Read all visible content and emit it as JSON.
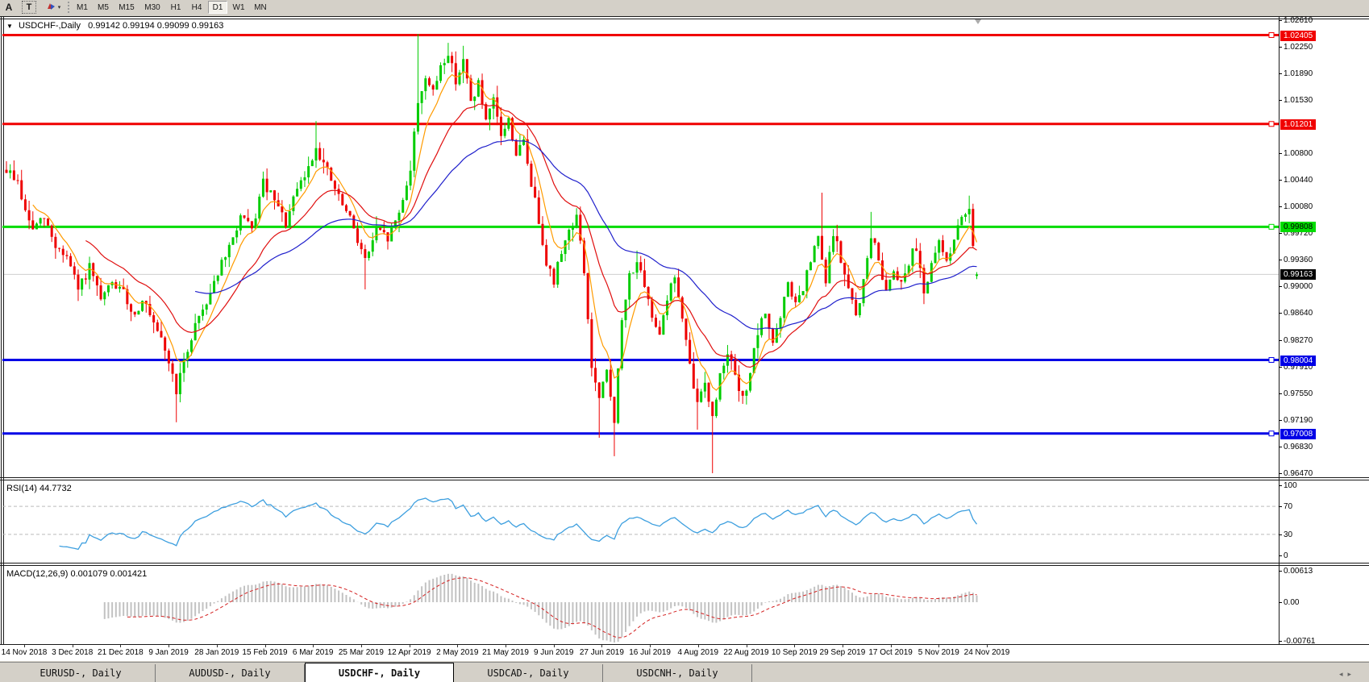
{
  "window": {
    "title_marker": "▼",
    "symbol_title": "USDCHF-,Daily",
    "ohlc_text": "0.99142 0.99194 0.99099 0.99163"
  },
  "toolbar": {
    "a_label": "A",
    "t_label": "T",
    "arrows_caret": "▾",
    "timeframes": [
      "M1",
      "M5",
      "M15",
      "M30",
      "H1",
      "H4",
      "D1",
      "W1",
      "MN"
    ],
    "active_timeframe": "D1"
  },
  "price_axis": {
    "ticks": [
      "1.02610",
      "1.02250",
      "1.01890",
      "1.01530",
      "1.00800",
      "1.00440",
      "1.00080",
      "0.99720",
      "0.99360",
      "0.99000",
      "0.98640",
      "0.98270",
      "0.97910",
      "0.97550",
      "0.97190",
      "0.96830",
      "0.96470"
    ],
    "current_price": {
      "label": "0.99163",
      "price": 0.99163,
      "bg": "#000000",
      "fg": "#ffffff"
    }
  },
  "levels": [
    {
      "label": "1.02405",
      "price": 1.02405,
      "color": "#f00000",
      "label_fg": "#ffffff",
      "width": 3
    },
    {
      "label": "1.01201",
      "price": 1.01201,
      "color": "#f00000",
      "label_fg": "#ffffff",
      "width": 3
    },
    {
      "label": "0.99808",
      "price": 0.99808,
      "color": "#00dc00",
      "label_fg": "#000000",
      "width": 3
    },
    {
      "label": "0.98004",
      "price": 0.98004,
      "color": "#0000e6",
      "label_fg": "#ffffff",
      "width": 3
    },
    {
      "label": "0.97008",
      "price": 0.97008,
      "color": "#0000e6",
      "label_fg": "#ffffff",
      "width": 3
    }
  ],
  "rsi_panel": {
    "label": "RSI(14) 44.7732",
    "ticks": [
      "100",
      "70",
      "30",
      "0"
    ],
    "tick_values": [
      100,
      70,
      30,
      0
    ],
    "dashed_levels": [
      70,
      30
    ],
    "line_color": "#3d9fdf"
  },
  "macd_panel": {
    "label": "MACD(12,26,9) 0.001079 0.001421",
    "ticks": [
      "0.00613",
      "0.00",
      "-0.00761"
    ],
    "tick_values": [
      0.00613,
      0,
      -0.00761
    ],
    "hist_color": "#c2c2c2",
    "signal_color": "#d42020"
  },
  "x_axis": {
    "dates": [
      "14 Nov 2018",
      "3 Dec 2018",
      "21 Dec 2018",
      "9 Jan 2019",
      "28 Jan 2019",
      "15 Feb 2019",
      "6 Mar 2019",
      "25 Mar 2019",
      "12 Apr 2019",
      "2 May 2019",
      "21 May 2019",
      "9 Jun 2019",
      "27 Jun 2019",
      "16 Jul 2019",
      "4 Aug 2019",
      "22 Aug 2019",
      "10 Sep 2019",
      "29 Sep 2019",
      "17 Oct 2019",
      "5 Nov 2019",
      "24 Nov 2019"
    ]
  },
  "tabs": {
    "items": [
      "EURUSD-, Daily",
      "AUDUSD-, Daily",
      "USDCHF-, Daily",
      "USDCAD-, Daily",
      "USDCNH-, Daily"
    ],
    "active": "USDCHF-, Daily",
    "scroll_left": "◂",
    "scroll_right": "▸"
  },
  "chart_data": {
    "type": "candlestick",
    "symbol": "USDCHF",
    "timeframe": "Daily",
    "visible_range": {
      "first_date": "14 Nov 2018",
      "last_date": "24 Nov 2019",
      "price_min": 0.9647,
      "price_max": 1.0242
    },
    "n_bars": 258,
    "last_bar": {
      "open": 0.99142,
      "high": 0.99194,
      "low": 0.99099,
      "close": 0.99163
    },
    "close_anchors": [
      [
        0,
        1.0058
      ],
      [
        3,
        1.0042
      ],
      [
        5,
        1.0
      ],
      [
        7,
        0.9978
      ],
      [
        10,
        0.9992
      ],
      [
        13,
        0.9955
      ],
      [
        16,
        0.994
      ],
      [
        19,
        0.9895
      ],
      [
        22,
        0.9925
      ],
      [
        25,
        0.988
      ],
      [
        28,
        0.9905
      ],
      [
        31,
        0.989
      ],
      [
        34,
        0.986
      ],
      [
        36,
        0.9885
      ],
      [
        39,
        0.9845
      ],
      [
        42,
        0.9815
      ],
      [
        45,
        0.976
      ],
      [
        47,
        0.9795
      ],
      [
        50,
        0.985
      ],
      [
        53,
        0.988
      ],
      [
        56,
        0.992
      ],
      [
        59,
        0.995
      ],
      [
        62,
        0.9995
      ],
      [
        65,
        0.9975
      ],
      [
        68,
        1.004
      ],
      [
        71,
        1.0015
      ],
      [
        74,
        0.9985
      ],
      [
        77,
        1.003
      ],
      [
        80,
        1.006
      ],
      [
        82,
        1.009
      ],
      [
        85,
        1.0055
      ],
      [
        88,
        1.002
      ],
      [
        92,
        0.998
      ],
      [
        95,
        0.9935
      ],
      [
        98,
        0.9975
      ],
      [
        101,
        0.9965
      ],
      [
        104,
        1.0
      ],
      [
        107,
        1.006
      ],
      [
        109,
        1.015
      ],
      [
        111,
        1.0185
      ],
      [
        113,
        1.016
      ],
      [
        115,
        1.02
      ],
      [
        117,
        1.0215
      ],
      [
        119,
        1.018
      ],
      [
        121,
        1.0205
      ],
      [
        123,
        1.015
      ],
      [
        125,
        1.0175
      ],
      [
        127,
        1.012
      ],
      [
        129,
        1.015
      ],
      [
        131,
        1.0105
      ],
      [
        133,
        1.0125
      ],
      [
        135,
        1.008
      ],
      [
        137,
        1.0095
      ],
      [
        139,
        1.004
      ],
      [
        141,
        0.999
      ],
      [
        143,
        0.9935
      ],
      [
        145,
        0.9905
      ],
      [
        147,
        0.995
      ],
      [
        149,
        0.9975
      ],
      [
        151,
        0.9995
      ],
      [
        153,
        0.992
      ],
      [
        155,
        0.979
      ],
      [
        157,
        0.9745
      ],
      [
        159,
        0.9785
      ],
      [
        161,
        0.972
      ],
      [
        163,
        0.985
      ],
      [
        165,
        0.9915
      ],
      [
        167,
        0.9935
      ],
      [
        169,
        0.9895
      ],
      [
        171,
        0.986
      ],
      [
        173,
        0.984
      ],
      [
        175,
        0.9885
      ],
      [
        177,
        0.9915
      ],
      [
        179,
        0.9855
      ],
      [
        181,
        0.979
      ],
      [
        183,
        0.974
      ],
      [
        185,
        0.9775
      ],
      [
        187,
        0.972
      ],
      [
        189,
        0.978
      ],
      [
        191,
        0.9815
      ],
      [
        193,
        0.9775
      ],
      [
        195,
        0.9745
      ],
      [
        197,
        0.9785
      ],
      [
        199,
        0.9835
      ],
      [
        201,
        0.9865
      ],
      [
        203,
        0.9825
      ],
      [
        205,
        0.9855
      ],
      [
        207,
        0.9905
      ],
      [
        209,
        0.9875
      ],
      [
        211,
        0.9895
      ],
      [
        213,
        0.9935
      ],
      [
        215,
        0.9965
      ],
      [
        217,
        0.9905
      ],
      [
        219,
        0.9975
      ],
      [
        221,
        0.9935
      ],
      [
        223,
        0.9895
      ],
      [
        225,
        0.986
      ],
      [
        227,
        0.9905
      ],
      [
        229,
        0.997
      ],
      [
        231,
        0.9935
      ],
      [
        233,
        0.9895
      ],
      [
        235,
        0.9925
      ],
      [
        237,
        0.9905
      ],
      [
        239,
        0.9935
      ],
      [
        241,
        0.9955
      ],
      [
        243,
        0.9895
      ],
      [
        245,
        0.9925
      ],
      [
        247,
        0.996
      ],
      [
        249,
        0.9935
      ],
      [
        251,
        0.9965
      ],
      [
        253,
        0.999
      ],
      [
        255,
        1.001
      ],
      [
        256,
        0.996
      ],
      [
        257,
        0.9916
      ]
    ],
    "wick_overrides": [
      {
        "i": 45,
        "low": 0.9716
      },
      {
        "i": 82,
        "high": 1.0124
      },
      {
        "i": 95,
        "low": 0.9896
      },
      {
        "i": 109,
        "high": 1.0242
      },
      {
        "i": 117,
        "high": 1.023
      },
      {
        "i": 121,
        "high": 1.0226
      },
      {
        "i": 151,
        "high": 1.0006
      },
      {
        "i": 157,
        "low": 0.9695
      },
      {
        "i": 161,
        "low": 0.967
      },
      {
        "i": 183,
        "low": 0.9706
      },
      {
        "i": 187,
        "low": 0.9647
      },
      {
        "i": 216,
        "high": 1.0027
      },
      {
        "i": 229,
        "high": 1.0001
      },
      {
        "i": 255,
        "high": 1.0023
      }
    ],
    "candle_colors": {
      "up": "#00cc00",
      "down": "#ee0000"
    },
    "moving_averages": [
      {
        "name": "fast",
        "period": 7,
        "color": "#ff9b00"
      },
      {
        "name": "medium",
        "period": 21,
        "color": "#e01010"
      },
      {
        "name": "slow",
        "period": 50,
        "color": "#2020cc"
      }
    ],
    "indicator_values": {
      "rsi_current": 44.7732,
      "macd_current": 0.001079,
      "macd_signal_current": 0.001421
    }
  }
}
